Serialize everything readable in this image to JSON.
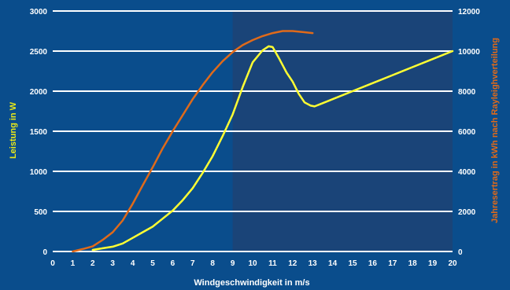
{
  "chart_data": {
    "type": "line",
    "xlabel": "Windgeschwindigkeit in m/s",
    "ylabel_left": "Leistung in W",
    "ylabel_right": "Jahresertrag in kWh nach Rayleighverteilung",
    "xlim": [
      0,
      20
    ],
    "ylim_left": [
      0,
      3000
    ],
    "ylim_right": [
      0,
      12000
    ],
    "x_ticks": [
      "0",
      "1",
      "2",
      "3",
      "4",
      "5",
      "6",
      "7",
      "8",
      "9",
      "10",
      "11",
      "12",
      "13",
      "14",
      "15",
      "16",
      "17",
      "18",
      "19",
      "20"
    ],
    "y_ticks_left": [
      "0",
      "500",
      "1000",
      "1500",
      "2000",
      "2500",
      "3000"
    ],
    "y_ticks_right": [
      "0",
      "2000",
      "4000",
      "6000",
      "8000",
      "10000",
      "12000"
    ],
    "grid": true,
    "highlight_from_x": 9,
    "series": [
      {
        "axis": "left",
        "color": "#ffff33",
        "points": [
          [
            2,
            20
          ],
          [
            2.5,
            40
          ],
          [
            3,
            60
          ],
          [
            3.5,
            100
          ],
          [
            4,
            170
          ],
          [
            4.5,
            240
          ],
          [
            5,
            310
          ],
          [
            5.5,
            410
          ],
          [
            6,
            510
          ],
          [
            6.5,
            640
          ],
          [
            7,
            790
          ],
          [
            7.5,
            980
          ],
          [
            8,
            1190
          ],
          [
            8.5,
            1440
          ],
          [
            9,
            1710
          ],
          [
            9.5,
            2050
          ],
          [
            10,
            2360
          ],
          [
            10.5,
            2510
          ],
          [
            10.8,
            2560
          ],
          [
            11,
            2550
          ],
          [
            11.3,
            2420
          ],
          [
            11.7,
            2230
          ],
          [
            12,
            2120
          ],
          [
            12.3,
            1970
          ],
          [
            12.6,
            1860
          ],
          [
            12.9,
            1820
          ],
          [
            13.1,
            1810
          ],
          [
            13.4,
            1840
          ],
          [
            14,
            1900
          ],
          [
            15,
            2000
          ],
          [
            16,
            2100
          ],
          [
            17,
            2200
          ],
          [
            18,
            2300
          ],
          [
            19,
            2400
          ],
          [
            20,
            2500
          ]
        ]
      },
      {
        "axis": "right",
        "color": "#e06a1a",
        "points": [
          [
            1,
            0
          ],
          [
            1.5,
            120
          ],
          [
            2,
            260
          ],
          [
            2.5,
            580
          ],
          [
            3,
            960
          ],
          [
            3.5,
            1550
          ],
          [
            4,
            2380
          ],
          [
            4.5,
            3300
          ],
          [
            5,
            4200
          ],
          [
            5.5,
            5150
          ],
          [
            6,
            6000
          ],
          [
            6.5,
            6800
          ],
          [
            7,
            7600
          ],
          [
            7.5,
            8300
          ],
          [
            8,
            8950
          ],
          [
            8.5,
            9500
          ],
          [
            9,
            9950
          ],
          [
            9.5,
            10300
          ],
          [
            10,
            10550
          ],
          [
            10.5,
            10750
          ],
          [
            11,
            10900
          ],
          [
            11.5,
            11000
          ],
          [
            12,
            11000
          ],
          [
            12.5,
            10950
          ],
          [
            13,
            10900
          ]
        ]
      }
    ]
  }
}
